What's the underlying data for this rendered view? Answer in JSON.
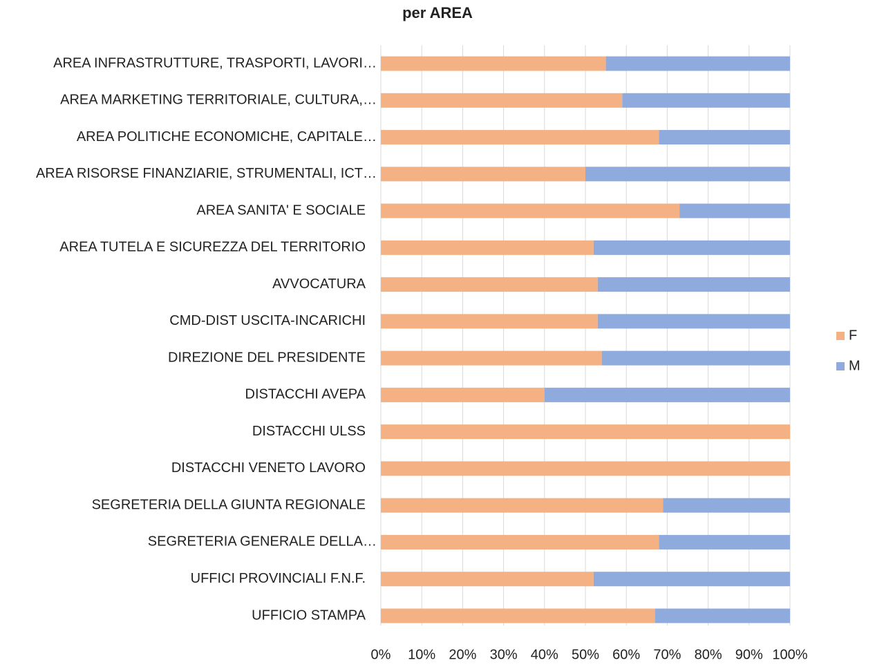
{
  "chart_data": {
    "type": "stacked_bar_horizontal",
    "title": "per AREA",
    "categories": [
      "AREA INFRASTRUTTURE, TRASPORTI, LAVORI…",
      "AREA MARKETING TERRITORIALE, CULTURA,…",
      "AREA POLITICHE ECONOMICHE, CAPITALE…",
      "AREA RISORSE FINANZIARIE, STRUMENTALI, ICT…",
      "AREA SANITA' E SOCIALE",
      "AREA TUTELA E SICUREZZA DEL TERRITORIO",
      "AVVOCATURA",
      "CMD-DIST USCITA-INCARICHI",
      "DIREZIONE DEL PRESIDENTE",
      "DISTACCHI AVEPA",
      "DISTACCHI ULSS",
      "DISTACCHI VENETO LAVORO",
      "SEGRETERIA DELLA GIUNTA REGIONALE",
      "SEGRETERIA GENERALE DELLA…",
      "UFFICI PROVINCIALI F.N.F.",
      "UFFICIO STAMPA"
    ],
    "series": [
      {
        "name": "F",
        "color": "#f4b183",
        "values": [
          55,
          59,
          68,
          50,
          73,
          52,
          53,
          53,
          54,
          40,
          100,
          100,
          69,
          68,
          52,
          67
        ]
      },
      {
        "name": "M",
        "color": "#8faadc",
        "values": [
          45,
          41,
          32,
          50,
          27,
          48,
          47,
          47,
          46,
          60,
          0,
          0,
          31,
          32,
          48,
          33
        ]
      }
    ],
    "xlim": [
      0,
      100
    ],
    "xticks": [
      {
        "value": 0,
        "label": "0%"
      },
      {
        "value": 10,
        "label": "10%"
      },
      {
        "value": 20,
        "label": "20%"
      },
      {
        "value": 30,
        "label": "30%"
      },
      {
        "value": 40,
        "label": "40%"
      },
      {
        "value": 50,
        "label": "50%"
      },
      {
        "value": 60,
        "label": "60%"
      },
      {
        "value": 70,
        "label": "70%"
      },
      {
        "value": 80,
        "label": "80%"
      },
      {
        "value": 90,
        "label": "90%"
      },
      {
        "value": 100,
        "label": "100%"
      }
    ],
    "grid": true,
    "legend": "right"
  }
}
